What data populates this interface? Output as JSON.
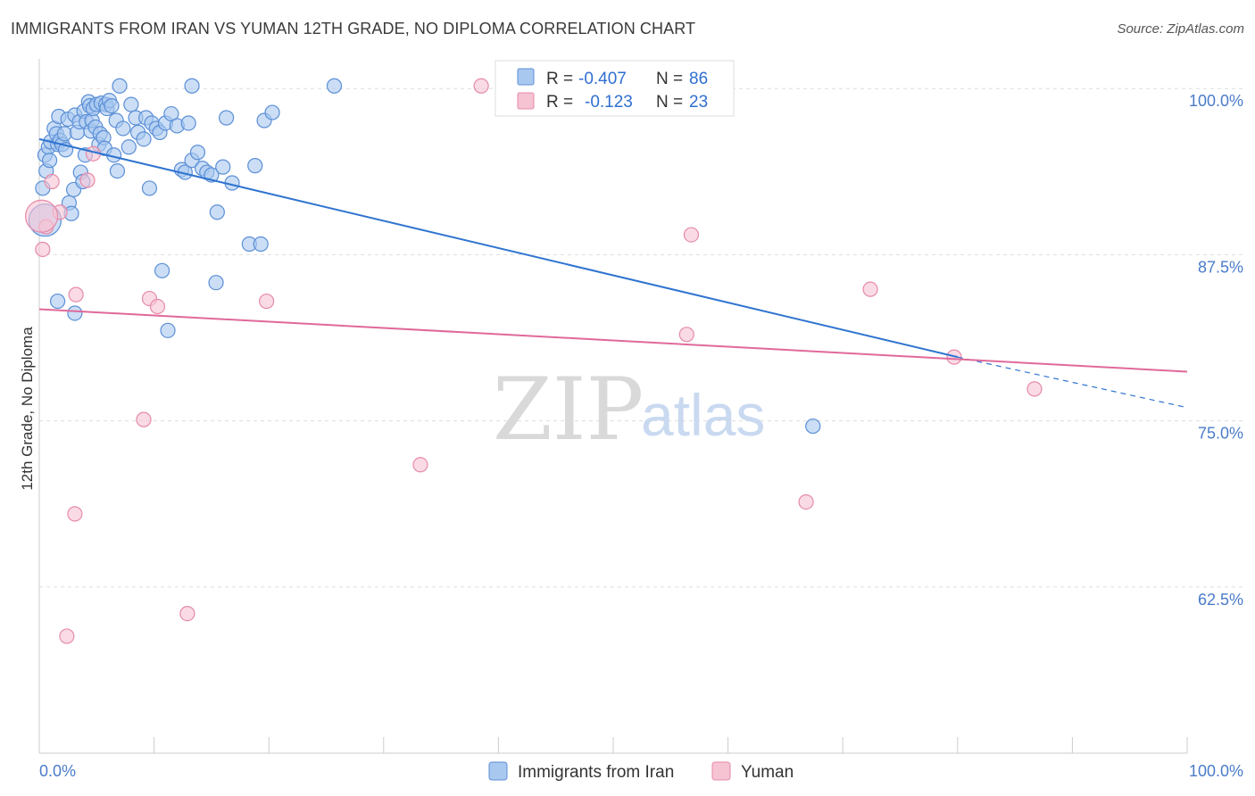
{
  "title": "IMMIGRANTS FROM IRAN VS YUMAN 12TH GRADE, NO DIPLOMA CORRELATION CHART",
  "source": "Source: ZipAtlas.com",
  "watermark": {
    "zip": "ZIP",
    "atlas": "atlas"
  },
  "colors": {
    "blue_fill": "#a9c8f0",
    "blue_stroke": "#5b8fd6",
    "blue_line": "#2f74d0",
    "pink_fill": "#f6c3d3",
    "pink_stroke": "#e68aa9",
    "pink_line": "#e0699a",
    "grid": "#dddddd",
    "axis_label": "#4a7cc9"
  },
  "legend": {
    "rows": [
      {
        "r_label": "R =",
        "r_value": "-0.407",
        "n_label": "N =",
        "n_value": "86"
      },
      {
        "r_label": "R =",
        "r_value": "-0.123",
        "n_label": "N =",
        "n_value": "23"
      }
    ]
  },
  "bottom_legend": [
    "Immigrants from Iran",
    "Yuman"
  ],
  "chart_data": {
    "type": "scatter",
    "ylabel": "12th Grade, No Diploma",
    "xlim": [
      0,
      100
    ],
    "ylim": [
      50,
      102.5
    ],
    "y_ticks": [
      {
        "value": 100,
        "label": "100.0%"
      },
      {
        "value": 87.5,
        "label": "87.5%"
      },
      {
        "value": 75,
        "label": "75.0%"
      },
      {
        "value": 62.5,
        "label": "62.5%"
      }
    ],
    "x_tick_labels": [
      {
        "value": 0,
        "label": "0.0%"
      },
      {
        "value": 100,
        "label": "100.0%"
      }
    ],
    "x_minor_ticks": [
      10,
      20,
      30,
      40,
      50,
      60,
      70,
      80,
      90,
      100
    ],
    "grid": true,
    "series": [
      {
        "name": "Immigrants from Iran",
        "color": "#a9c8f0",
        "trend": {
          "x0": 0,
          "y0": 96.2,
          "x1": 80,
          "y1": 79.8,
          "dash_to_x": 100,
          "dash_to_y": 76.0
        },
        "points": [
          [
            0.3,
            92.5
          ],
          [
            0.5,
            95.0
          ],
          [
            0.6,
            93.8
          ],
          [
            0.8,
            95.6
          ],
          [
            0.9,
            94.6
          ],
          [
            1.0,
            96.0
          ],
          [
            1.3,
            97.0
          ],
          [
            1.5,
            96.6
          ],
          [
            1.6,
            95.8
          ],
          [
            1.7,
            97.9
          ],
          [
            1.8,
            96.1
          ],
          [
            2.0,
            95.8
          ],
          [
            2.2,
            96.6
          ],
          [
            2.3,
            95.4
          ],
          [
            2.5,
            97.7
          ],
          [
            2.6,
            91.4
          ],
          [
            2.8,
            90.6
          ],
          [
            3.0,
            92.4
          ],
          [
            3.1,
            98.0
          ],
          [
            3.3,
            96.7
          ],
          [
            3.5,
            97.5
          ],
          [
            3.6,
            93.7
          ],
          [
            3.8,
            93.0
          ],
          [
            3.9,
            98.3
          ],
          [
            4.0,
            95.0
          ],
          [
            4.1,
            97.5
          ],
          [
            4.3,
            99.0
          ],
          [
            4.4,
            98.7
          ],
          [
            4.5,
            96.8
          ],
          [
            4.6,
            97.6
          ],
          [
            4.7,
            98.5
          ],
          [
            4.9,
            97.1
          ],
          [
            5.0,
            98.8
          ],
          [
            5.2,
            95.8
          ],
          [
            5.3,
            96.6
          ],
          [
            5.4,
            98.9
          ],
          [
            5.6,
            96.3
          ],
          [
            5.7,
            95.5
          ],
          [
            5.8,
            98.8
          ],
          [
            5.9,
            98.5
          ],
          [
            6.1,
            99.1
          ],
          [
            6.3,
            98.7
          ],
          [
            6.5,
            95.0
          ],
          [
            6.7,
            97.6
          ],
          [
            6.8,
            93.8
          ],
          [
            7.3,
            97.0
          ],
          [
            7.8,
            95.6
          ],
          [
            8.0,
            98.8
          ],
          [
            8.4,
            97.8
          ],
          [
            8.6,
            96.7
          ],
          [
            9.1,
            96.2
          ],
          [
            9.3,
            97.8
          ],
          [
            9.6,
            92.5
          ],
          [
            9.8,
            97.4
          ],
          [
            10.2,
            97.0
          ],
          [
            10.5,
            96.7
          ],
          [
            11.0,
            97.4
          ],
          [
            11.5,
            98.1
          ],
          [
            12.0,
            97.2
          ],
          [
            12.4,
            93.9
          ],
          [
            12.7,
            93.7
          ],
          [
            13.0,
            97.4
          ],
          [
            13.3,
            94.6
          ],
          [
            13.8,
            95.2
          ],
          [
            14.2,
            94.0
          ],
          [
            14.6,
            93.7
          ],
          [
            15.0,
            93.5
          ],
          [
            15.5,
            90.7
          ],
          [
            16.0,
            94.1
          ],
          [
            16.3,
            97.8
          ],
          [
            16.8,
            92.9
          ],
          [
            18.3,
            88.3
          ],
          [
            18.8,
            94.2
          ],
          [
            19.3,
            88.3
          ],
          [
            19.6,
            97.6
          ],
          [
            20.3,
            98.2
          ],
          [
            25.7,
            100.2
          ],
          [
            10.7,
            86.3
          ],
          [
            11.2,
            81.8
          ],
          [
            15.4,
            85.4
          ],
          [
            7.0,
            100.2
          ],
          [
            13.3,
            100.2
          ],
          [
            1.6,
            84.0
          ],
          [
            3.1,
            83.1
          ],
          [
            67.4,
            74.6
          ],
          [
            0.5,
            90.1
          ]
        ]
      },
      {
        "name": "Yuman",
        "color": "#f6c3d3",
        "trend": {
          "x0": 0,
          "y0": 83.4,
          "x1": 100,
          "y1": 78.7
        },
        "points": [
          [
            0.3,
            87.9
          ],
          [
            0.6,
            89.6
          ],
          [
            1.1,
            93.0
          ],
          [
            1.8,
            90.7
          ],
          [
            3.2,
            84.5
          ],
          [
            4.2,
            93.1
          ],
          [
            4.7,
            95.1
          ],
          [
            9.1,
            75.1
          ],
          [
            9.6,
            84.2
          ],
          [
            10.3,
            83.6
          ],
          [
            19.8,
            84.0
          ],
          [
            33.2,
            71.7
          ],
          [
            38.5,
            100.2
          ],
          [
            56.4,
            81.5
          ],
          [
            56.8,
            89.0
          ],
          [
            66.8,
            68.9
          ],
          [
            72.4,
            84.9
          ],
          [
            79.7,
            79.8
          ],
          [
            86.7,
            77.4
          ],
          [
            3.1,
            68.0
          ],
          [
            12.9,
            60.5
          ],
          [
            2.4,
            58.8
          ],
          [
            0.2,
            90.4
          ]
        ]
      }
    ]
  }
}
